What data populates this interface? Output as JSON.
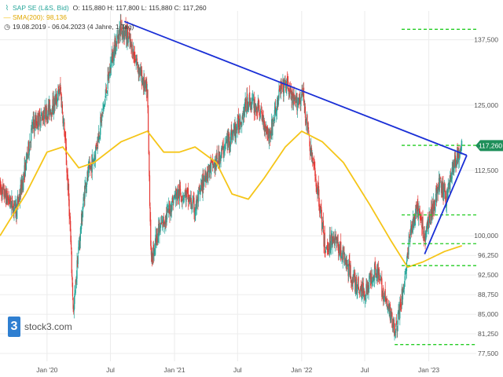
{
  "legend": {
    "instrument": "SAP SE (L&S, Bid)",
    "ohlc": "O: 115,880  H: 117,800  L: 115,880  C: 117,260",
    "sma": "SMA(200): 98,136",
    "period": "19.08.2019 - 06.04.2023  (4 Jahre, 1 Tag)"
  },
  "watermark": {
    "text": "stock3.com",
    "logo_glyph": "3"
  },
  "colors": {
    "up_candle": "#26a69a",
    "down_candle": "#e53935",
    "sma": "#f5c518",
    "trendline": "#1a2fd6",
    "level_line": "#22cc22",
    "last_price_bg": "#1e8f5a"
  },
  "chart_data": {
    "type": "candlestick",
    "x_tick_labels": [
      "Jan '20",
      "Jul",
      "Jan '21",
      "Jul",
      "Jan '22",
      "Jul",
      "Jan '23"
    ],
    "y_tick_labels": [
      "137,500",
      "125,000",
      "112,500",
      "100,000",
      "96,250",
      "92,500",
      "88,750",
      "85,000",
      "81,250",
      "77,500"
    ],
    "y_ticks": [
      137.5,
      125,
      112.5,
      100,
      96.25,
      92.5,
      88.75,
      85,
      81.25,
      77.5
    ],
    "ylim": [
      76,
      143
    ],
    "last_price": 117.26,
    "last_price_label": "117,260",
    "price_path": [
      [
        "2019-08-19",
        109
      ],
      [
        "2019-09-10",
        107
      ],
      [
        "2019-10-05",
        105
      ],
      [
        "2019-10-25",
        111
      ],
      [
        "2019-11-20",
        121
      ],
      [
        "2019-12-20",
        123
      ],
      [
        "2020-01-20",
        125
      ],
      [
        "2020-02-08",
        128
      ],
      [
        "2020-02-20",
        120
      ],
      [
        "2020-03-05",
        105
      ],
      [
        "2020-03-17",
        85
      ],
      [
        "2020-03-28",
        95
      ],
      [
        "2020-04-20",
        110
      ],
      [
        "2020-05-15",
        115
      ],
      [
        "2020-06-10",
        124
      ],
      [
        "2020-07-05",
        134
      ],
      [
        "2020-07-30",
        140
      ],
      [
        "2020-08-20",
        138
      ],
      [
        "2020-09-15",
        133
      ],
      [
        "2020-10-15",
        127
      ],
      [
        "2020-10-26",
        95
      ],
      [
        "2020-11-10",
        100
      ],
      [
        "2020-12-10",
        104
      ],
      [
        "2021-01-05",
        108
      ],
      [
        "2021-02-01",
        108
      ],
      [
        "2021-03-01",
        105
      ],
      [
        "2021-04-01",
        112
      ],
      [
        "2021-05-01",
        114
      ],
      [
        "2021-06-01",
        118
      ],
      [
        "2021-07-01",
        121
      ],
      [
        "2021-08-01",
        126
      ],
      [
        "2021-09-01",
        124
      ],
      [
        "2021-10-01",
        119
      ],
      [
        "2021-11-01",
        128
      ],
      [
        "2021-11-20",
        129
      ],
      [
        "2021-12-10",
        125
      ],
      [
        "2022-01-05",
        127
      ],
      [
        "2022-01-25",
        117
      ],
      [
        "2022-02-20",
        107
      ],
      [
        "2022-03-10",
        97
      ],
      [
        "2022-04-01",
        100
      ],
      [
        "2022-05-01",
        96
      ],
      [
        "2022-06-01",
        91
      ],
      [
        "2022-07-01",
        89
      ],
      [
        "2022-08-01",
        94
      ],
      [
        "2022-09-01",
        87
      ],
      [
        "2022-09-29",
        82
      ],
      [
        "2022-10-20",
        90
      ],
      [
        "2022-11-10",
        101
      ],
      [
        "2022-12-01",
        105
      ],
      [
        "2022-12-20",
        100
      ],
      [
        "2023-01-10",
        105
      ],
      [
        "2023-02-01",
        110
      ],
      [
        "2023-02-20",
        107
      ],
      [
        "2023-03-10",
        113
      ],
      [
        "2023-03-25",
        115
      ],
      [
        "2023-04-06",
        117.26
      ]
    ],
    "sma_path": [
      [
        "2019-08-19",
        100
      ],
      [
        "2019-11-01",
        108
      ],
      [
        "2020-01-01",
        116
      ],
      [
        "2020-02-15",
        117
      ],
      [
        "2020-04-01",
        113
      ],
      [
        "2020-05-15",
        114
      ],
      [
        "2020-08-01",
        118
      ],
      [
        "2020-10-15",
        120
      ],
      [
        "2020-12-01",
        116
      ],
      [
        "2021-01-15",
        116
      ],
      [
        "2021-03-01",
        117
      ],
      [
        "2021-05-01",
        114
      ],
      [
        "2021-06-15",
        108
      ],
      [
        "2021-08-01",
        107
      ],
      [
        "2021-09-15",
        111
      ],
      [
        "2021-11-15",
        117
      ],
      [
        "2022-01-01",
        120
      ],
      [
        "2022-03-01",
        118
      ],
      [
        "2022-05-01",
        114
      ],
      [
        "2022-07-15",
        106
      ],
      [
        "2022-09-15",
        99
      ],
      [
        "2022-11-01",
        94
      ],
      [
        "2022-12-15",
        95
      ],
      [
        "2023-02-15",
        97
      ],
      [
        "2023-04-06",
        98.1
      ]
    ],
    "trendlines": [
      {
        "from": [
          "2020-08-10",
          141
        ],
        "to": [
          "2023-04-20",
          115.4
        ]
      },
      {
        "from": [
          "2022-12-20",
          96.5
        ],
        "to": [
          "2023-04-20",
          115.4
        ]
      }
    ],
    "horizontal_levels": [
      139.5,
      117.3,
      104,
      98.5,
      94.3,
      79.2
    ],
    "grid": true
  }
}
